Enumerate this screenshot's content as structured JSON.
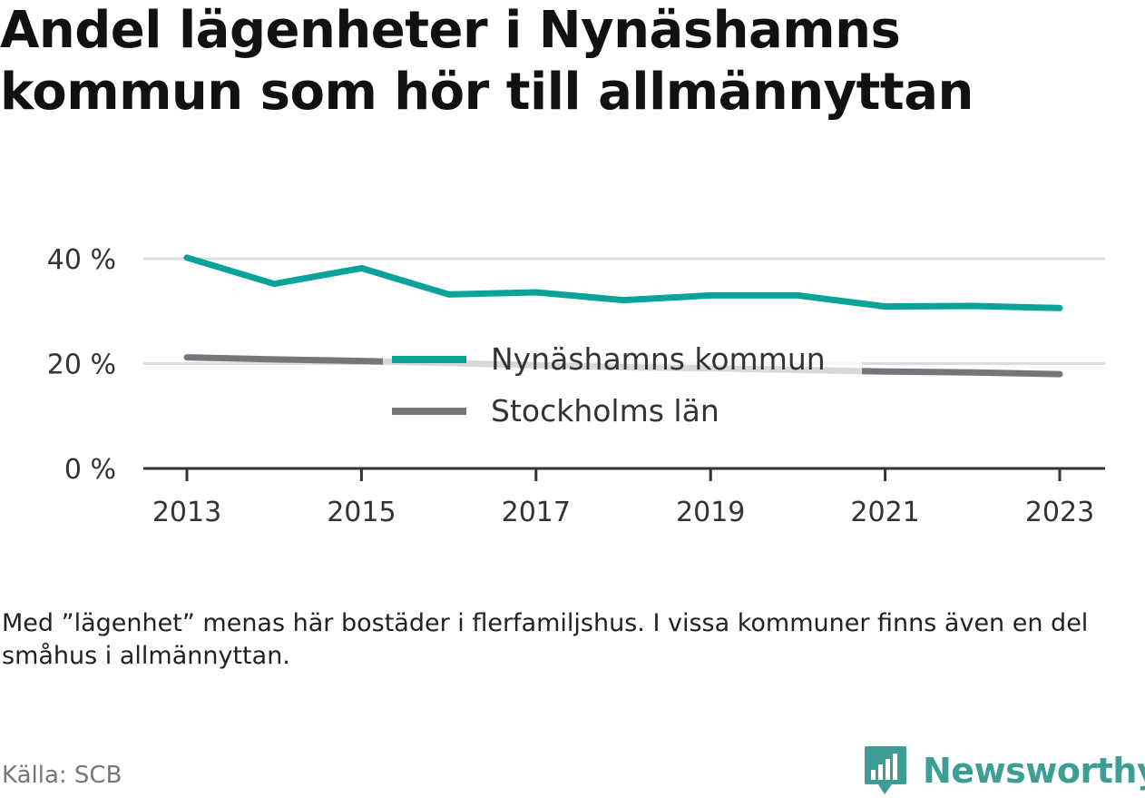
{
  "title": "Andel lägenheter i Nynäshamns kommun som hör till allmännyttan",
  "note": "Med ”lägenhet” menas här bostäder i flerfamiljshus. I vissa kommuner finns även en del småhus i allmännyttan.",
  "source": "Källa: SCB",
  "brand": {
    "name": "Newsworthy",
    "logo_icon": "newsworthy-chart-bubble-icon"
  },
  "colors": {
    "nynashamn": "#0aa39a",
    "stockholm": "#75757b",
    "grid": "#dddddd",
    "axis": "#333333",
    "brand": "#3c9e94"
  },
  "chart_data": {
    "type": "line",
    "title": "Andel lägenheter i Nynäshamns kommun som hör till allmännyttan",
    "x": [
      2013,
      2014,
      2015,
      2016,
      2017,
      2018,
      2019,
      2020,
      2021,
      2022,
      2023
    ],
    "x_ticks": [
      "2013",
      "2015",
      "2017",
      "2019",
      "2021",
      "2023"
    ],
    "y_ticks": [
      "0 %",
      "20 %",
      "40 %"
    ],
    "y_tick_values": [
      0,
      20,
      40
    ],
    "ylim": [
      0,
      40
    ],
    "y_unit": "%",
    "grid": true,
    "legend_position": "center",
    "series": [
      {
        "name": "Nynäshamns kommun",
        "color": "#0aa39a",
        "values": [
          40.2,
          35.2,
          38.2,
          33.2,
          33.6,
          32.1,
          33.0,
          33.0,
          30.9,
          31.0,
          30.6
        ]
      },
      {
        "name": "Stockholms län",
        "color": "#75757b",
        "values": [
          21.2,
          20.8,
          20.5,
          20.1,
          19.7,
          19.3,
          19.1,
          18.8,
          18.5,
          18.3,
          18.0
        ]
      }
    ]
  }
}
